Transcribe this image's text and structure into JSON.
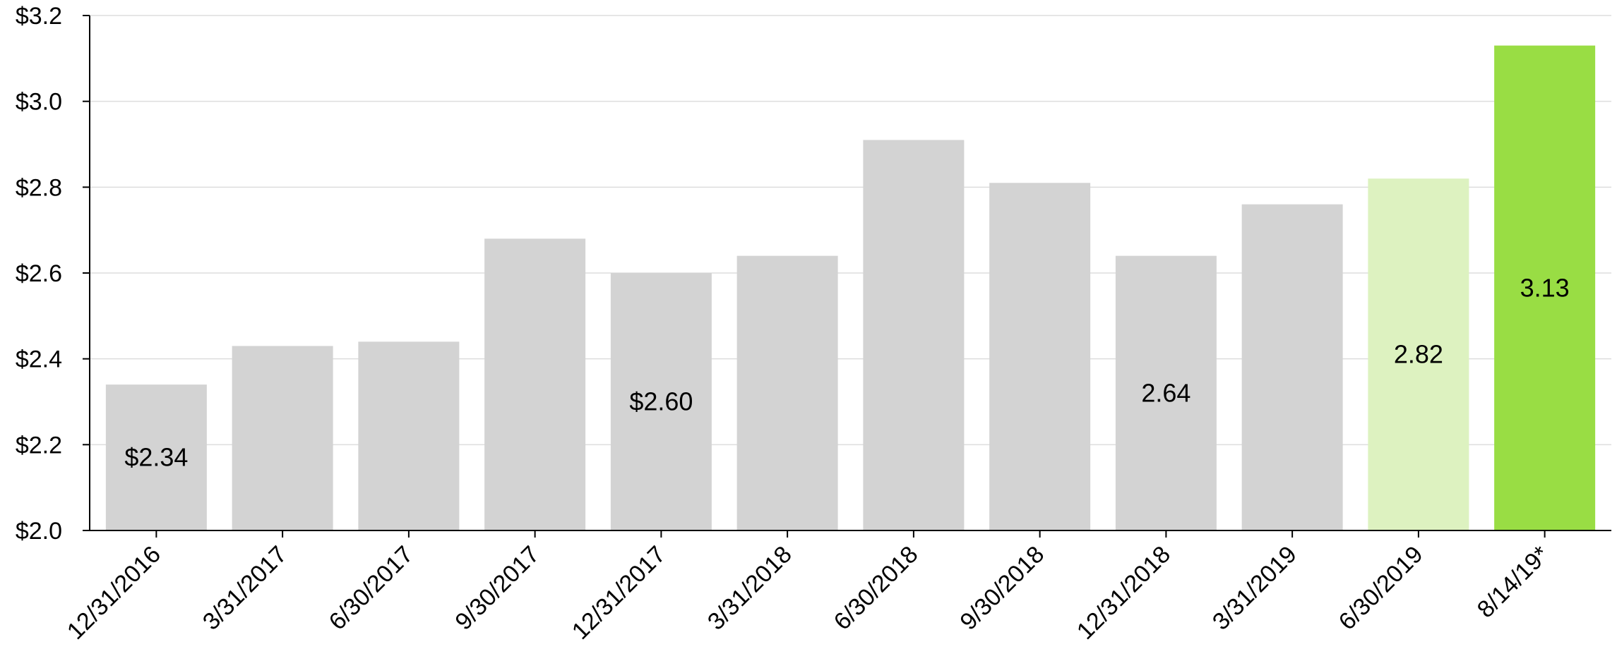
{
  "chart_data": {
    "type": "bar",
    "title": "",
    "xlabel": "",
    "ylabel": "",
    "ylim": [
      2.0,
      3.2
    ],
    "yticks": [
      "$2.0",
      "$2.2",
      "$2.4",
      "$2.6",
      "$2.8",
      "$3.0",
      "$3.2"
    ],
    "ytick_values": [
      2.0,
      2.2,
      2.4,
      2.6,
      2.8,
      3.0,
      3.2
    ],
    "grid": true,
    "categories": [
      "12/31/2016",
      "3/31/2017",
      "6/30/2017",
      "9/30/2017",
      "12/31/2017",
      "3/31/2018",
      "6/30/2018",
      "9/30/2018",
      "12/31/2018",
      "3/31/2019",
      "6/30/2019",
      "8/14/19*"
    ],
    "values": [
      2.34,
      2.43,
      2.44,
      2.68,
      2.6,
      2.64,
      2.91,
      2.81,
      2.64,
      2.76,
      2.82,
      3.13
    ],
    "bar_colors": [
      "#d3d3d3",
      "#d3d3d3",
      "#d3d3d3",
      "#d3d3d3",
      "#d3d3d3",
      "#d3d3d3",
      "#d3d3d3",
      "#d3d3d3",
      "#d3d3d3",
      "#d3d3d3",
      "#ddf2c0",
      "#99dd44"
    ],
    "data_labels": [
      "$2.34",
      "",
      "",
      "",
      "$2.60",
      "",
      "",
      "",
      "2.64",
      "",
      "2.82",
      "3.13"
    ]
  }
}
